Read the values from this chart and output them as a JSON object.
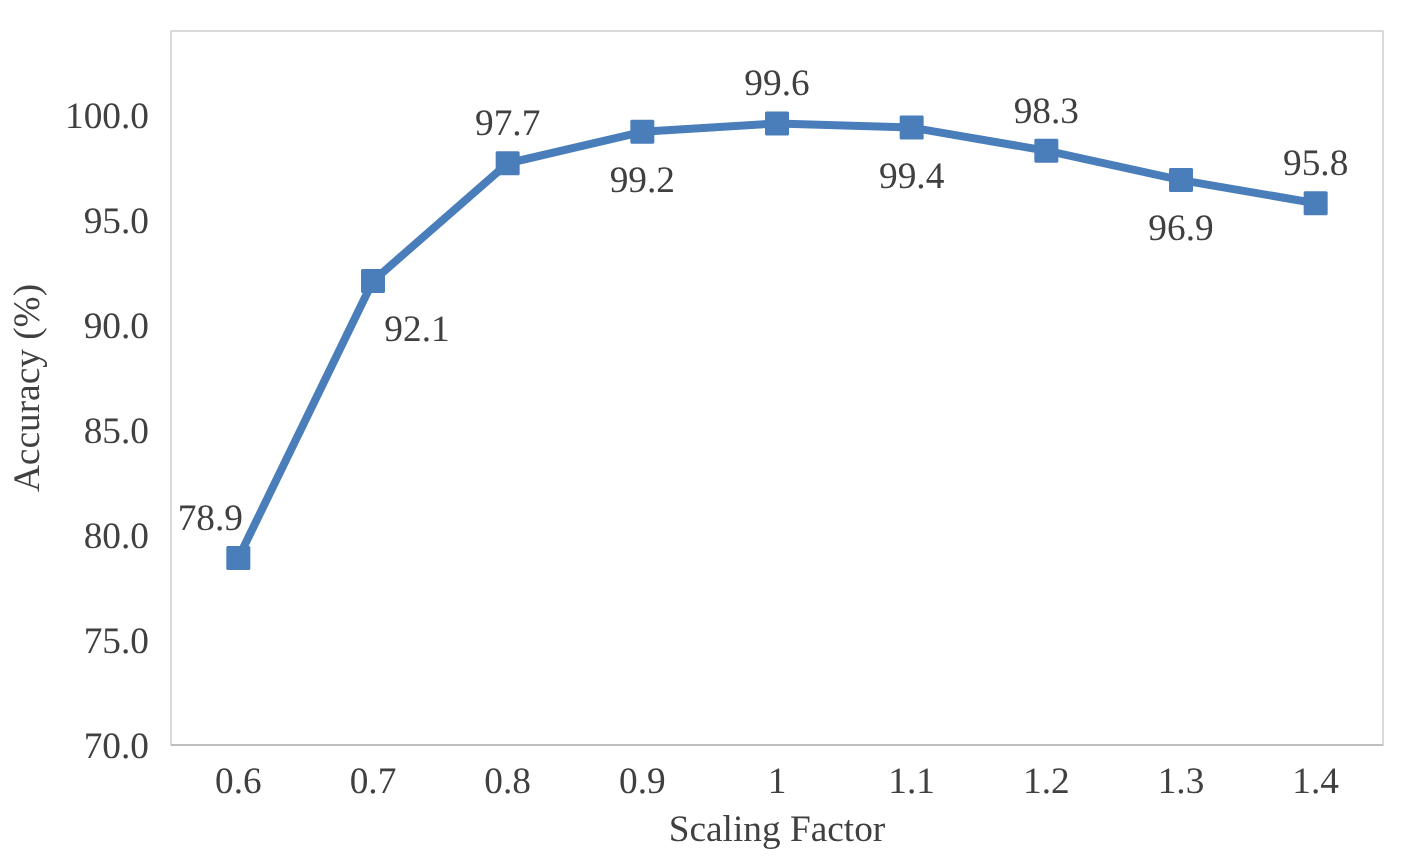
{
  "chart_data": {
    "type": "line",
    "xlabel": "Scaling Factor",
    "ylabel": "Accuracy (%)",
    "categories": [
      "0.6",
      "0.7",
      "0.8",
      "0.9",
      "1",
      "1.1",
      "1.2",
      "1.3",
      "1.4"
    ],
    "series": [
      {
        "color": "#4a7ebb",
        "values": [
          78.9,
          92.1,
          97.7,
          99.2,
          99.6,
          99.4,
          98.3,
          96.9,
          95.8
        ]
      }
    ],
    "ylim": [
      70,
      104
    ],
    "yticks": [
      {
        "value": 70,
        "label": "70.0"
      },
      {
        "value": 75,
        "label": "75.0"
      },
      {
        "value": 80,
        "label": "80.0"
      },
      {
        "value": 85,
        "label": "85.0"
      },
      {
        "value": 90,
        "label": "90.0"
      },
      {
        "value": 95,
        "label": "95.0"
      },
      {
        "value": 100,
        "label": "100.0"
      }
    ],
    "data_labels": true,
    "grid": false,
    "marker": "square",
    "line_style": "solid"
  }
}
